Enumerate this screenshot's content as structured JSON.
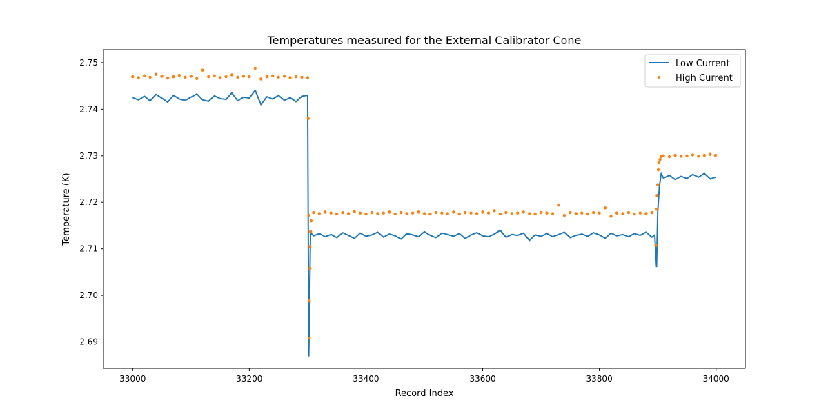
{
  "chart_data": {
    "type": "line",
    "title": "Temperatures measured for the External Calibrator Cone",
    "xlabel": "Record Index",
    "ylabel": "Temperature (K)",
    "xlim": [
      32950,
      34050
    ],
    "ylim": [
      2.6843,
      2.7528
    ],
    "xticks": [
      33000,
      33200,
      33400,
      33600,
      33800,
      34000
    ],
    "yticks": [
      2.69,
      2.7,
      2.71,
      2.72,
      2.73,
      2.74,
      2.75
    ],
    "ytick_labels": [
      "2.69",
      "2.70",
      "2.71",
      "2.72",
      "2.73",
      "2.74",
      "2.75"
    ],
    "grid": false,
    "legend_position": "top-right",
    "series": [
      {
        "name": "Low Current",
        "kind": "line",
        "color": "#1f77b4",
        "x": [
          33000,
          33010,
          33020,
          33030,
          33040,
          33050,
          33060,
          33070,
          33080,
          33090,
          33100,
          33110,
          33120,
          33130,
          33140,
          33150,
          33160,
          33170,
          33180,
          33190,
          33200,
          33210,
          33220,
          33230,
          33240,
          33250,
          33260,
          33270,
          33280,
          33290,
          33300,
          33302,
          33305,
          33310,
          33320,
          33330,
          33340,
          33350,
          33360,
          33370,
          33380,
          33390,
          33400,
          33410,
          33420,
          33430,
          33440,
          33450,
          33460,
          33470,
          33480,
          33490,
          33500,
          33510,
          33520,
          33530,
          33540,
          33550,
          33560,
          33570,
          33580,
          33590,
          33600,
          33610,
          33620,
          33630,
          33640,
          33650,
          33660,
          33670,
          33680,
          33690,
          33700,
          33710,
          33720,
          33730,
          33740,
          33750,
          33760,
          33770,
          33780,
          33790,
          33800,
          33810,
          33820,
          33830,
          33840,
          33850,
          33860,
          33870,
          33880,
          33890,
          33895,
          33898,
          33900,
          33903,
          33906,
          33910,
          33920,
          33930,
          33940,
          33950,
          33960,
          33970,
          33980,
          33990,
          33999
        ],
        "y": [
          2.7425,
          2.742,
          2.7428,
          2.7418,
          2.7432,
          2.7424,
          2.7415,
          2.743,
          2.7422,
          2.7419,
          2.7426,
          2.7433,
          2.742,
          2.7417,
          2.7429,
          2.7423,
          2.7421,
          2.7435,
          2.7418,
          2.7426,
          2.7424,
          2.7441,
          2.741,
          2.7427,
          2.7422,
          2.743,
          2.7419,
          2.7425,
          2.7416,
          2.7428,
          2.743,
          2.687,
          2.7135,
          2.7128,
          2.7133,
          2.7126,
          2.7131,
          2.7124,
          2.7135,
          2.7129,
          2.7122,
          2.7134,
          2.7127,
          2.713,
          2.7136,
          2.7125,
          2.7132,
          2.7128,
          2.7121,
          2.7133,
          2.713,
          2.7126,
          2.7137,
          2.7129,
          2.7124,
          2.7134,
          2.7131,
          2.7127,
          2.7133,
          2.7122,
          2.713,
          2.7135,
          2.7128,
          2.7126,
          2.7132,
          2.714,
          2.7125,
          2.7131,
          2.7129,
          2.7134,
          2.7118,
          2.713,
          2.7127,
          2.7133,
          2.7126,
          2.7131,
          2.7136,
          2.7124,
          2.7129,
          2.7132,
          2.7127,
          2.7135,
          2.713,
          2.7123,
          2.7134,
          2.7128,
          2.7131,
          2.7126,
          2.7133,
          2.7129,
          2.7136,
          2.7125,
          2.713,
          2.7062,
          2.718,
          2.7235,
          2.7262,
          2.7252,
          2.7258,
          2.7249,
          2.7256,
          2.7251,
          2.726,
          2.7254,
          2.7262,
          2.725,
          2.7254
        ]
      },
      {
        "name": "High Current",
        "kind": "scatter",
        "color": "#ff7f0e",
        "x": [
          33000,
          33010,
          33020,
          33030,
          33040,
          33050,
          33060,
          33070,
          33080,
          33090,
          33100,
          33110,
          33120,
          33130,
          33140,
          33150,
          33160,
          33170,
          33180,
          33190,
          33200,
          33210,
          33220,
          33230,
          33240,
          33250,
          33260,
          33270,
          33280,
          33290,
          33300,
          33301,
          33302,
          33303,
          33303,
          33304,
          33304,
          33305,
          33306,
          33310,
          33320,
          33330,
          33340,
          33350,
          33360,
          33370,
          33380,
          33390,
          33400,
          33410,
          33420,
          33430,
          33440,
          33450,
          33460,
          33470,
          33480,
          33490,
          33500,
          33510,
          33520,
          33530,
          33540,
          33550,
          33560,
          33570,
          33580,
          33590,
          33600,
          33610,
          33620,
          33630,
          33640,
          33650,
          33660,
          33670,
          33680,
          33690,
          33700,
          33710,
          33720,
          33730,
          33740,
          33750,
          33760,
          33770,
          33780,
          33790,
          33800,
          33810,
          33820,
          33830,
          33840,
          33850,
          33860,
          33870,
          33880,
          33890,
          33897,
          33898,
          33899,
          33900,
          33901,
          33902,
          33904,
          33906,
          33910,
          33920,
          33930,
          33940,
          33950,
          33960,
          33970,
          33980,
          33990,
          33999
        ],
        "y": [
          2.747,
          2.7468,
          2.7472,
          2.7469,
          2.7475,
          2.7471,
          2.7467,
          2.747,
          2.7473,
          2.7469,
          2.7471,
          2.7466,
          2.7484,
          2.747,
          2.7472,
          2.7468,
          2.747,
          2.7474,
          2.7469,
          2.7471,
          2.747,
          2.7488,
          2.7465,
          2.747,
          2.7472,
          2.7469,
          2.7471,
          2.7468,
          2.747,
          2.7469,
          2.7468,
          2.738,
          2.7172,
          2.6988,
          2.6908,
          2.7058,
          2.7105,
          2.7137,
          2.716,
          2.7178,
          2.7176,
          2.7179,
          2.7177,
          2.7175,
          2.7178,
          2.7176,
          2.718,
          2.7177,
          2.7175,
          2.7178,
          2.7176,
          2.7177,
          2.7179,
          2.7175,
          2.7178,
          2.7176,
          2.7177,
          2.7179,
          2.7176,
          2.7175,
          2.7178,
          2.7177,
          2.7176,
          2.7179,
          2.7175,
          2.7178,
          2.7177,
          2.7176,
          2.7179,
          2.7177,
          2.7182,
          2.7175,
          2.7178,
          2.7176,
          2.7177,
          2.7179,
          2.7176,
          2.7175,
          2.7178,
          2.7177,
          2.7176,
          2.7194,
          2.7172,
          2.7178,
          2.7176,
          2.7177,
          2.7175,
          2.7178,
          2.7177,
          2.7188,
          2.717,
          2.7177,
          2.7176,
          2.7178,
          2.7175,
          2.7177,
          2.7176,
          2.7178,
          2.7108,
          2.7185,
          2.7215,
          2.7238,
          2.727,
          2.7285,
          2.7292,
          2.7298,
          2.73,
          2.7298,
          2.7301,
          2.7299,
          2.73,
          2.7302,
          2.7299,
          2.7301,
          2.7303,
          2.7301
        ]
      }
    ]
  }
}
